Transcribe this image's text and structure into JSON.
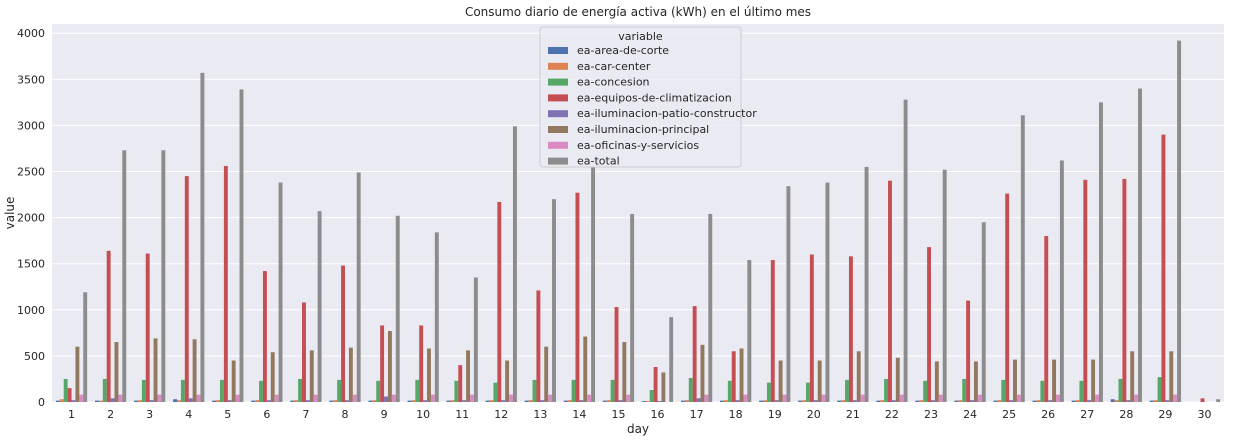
{
  "chart_data": {
    "type": "bar",
    "title": "Consumo diario de energía activa (kWh) en el último mes",
    "xlabel": "day",
    "ylabel": "value",
    "ylim": [
      0,
      4100
    ],
    "yticks": [
      0,
      500,
      1000,
      1500,
      2000,
      2500,
      3000,
      3500,
      4000
    ],
    "grid": true,
    "legend_title": "variable",
    "legend_position": "top-center",
    "categories": [
      "1",
      "2",
      "3",
      "4",
      "5",
      "6",
      "7",
      "8",
      "9",
      "10",
      "11",
      "12",
      "13",
      "14",
      "15",
      "16",
      "17",
      "18",
      "19",
      "20",
      "21",
      "22",
      "23",
      "24",
      "25",
      "26",
      "27",
      "28",
      "29",
      "30"
    ],
    "series": [
      {
        "name": "ea-area-de-corte",
        "color": "#4c72b0",
        "values": [
          15,
          15,
          15,
          30,
          15,
          15,
          15,
          15,
          15,
          15,
          15,
          15,
          15,
          15,
          15,
          10,
          15,
          15,
          15,
          15,
          15,
          15,
          15,
          15,
          15,
          15,
          15,
          30,
          15,
          0
        ]
      },
      {
        "name": "ea-car-center",
        "color": "#dd8452",
        "values": [
          30,
          15,
          20,
          20,
          20,
          20,
          20,
          20,
          20,
          20,
          20,
          20,
          20,
          20,
          20,
          10,
          20,
          20,
          20,
          20,
          20,
          20,
          20,
          20,
          20,
          20,
          20,
          20,
          20,
          0
        ]
      },
      {
        "name": "ea-concesion",
        "color": "#55a868",
        "values": [
          250,
          250,
          240,
          240,
          240,
          230,
          250,
          240,
          230,
          240,
          230,
          210,
          240,
          240,
          240,
          130,
          260,
          230,
          210,
          210,
          240,
          250,
          230,
          250,
          240,
          230,
          230,
          250,
          270,
          0
        ]
      },
      {
        "name": "ea-equipos-de-climatizacion",
        "color": "#c44e52",
        "values": [
          150,
          1640,
          1610,
          2450,
          2560,
          1420,
          1080,
          1480,
          830,
          830,
          400,
          2170,
          1210,
          2270,
          1030,
          380,
          1040,
          550,
          1540,
          1600,
          1580,
          2400,
          1680,
          1100,
          2260,
          1800,
          2410,
          2420,
          2900,
          40
        ]
      },
      {
        "name": "ea-iluminacion-patio-constructor",
        "color": "#8172b3",
        "values": [
          20,
          40,
          20,
          40,
          20,
          20,
          20,
          20,
          60,
          20,
          20,
          20,
          20,
          20,
          20,
          10,
          40,
          20,
          20,
          20,
          20,
          20,
          20,
          20,
          20,
          20,
          20,
          20,
          20,
          0
        ]
      },
      {
        "name": "ea-iluminacion-principal",
        "color": "#937860",
        "values": [
          600,
          650,
          690,
          680,
          450,
          540,
          560,
          590,
          770,
          580,
          560,
          450,
          600,
          710,
          650,
          320,
          620,
          580,
          450,
          450,
          550,
          480,
          440,
          440,
          460,
          460,
          460,
          550,
          550,
          0
        ]
      },
      {
        "name": "ea-oficinas-y-servicios",
        "color": "#da8bc3",
        "values": [
          80,
          80,
          80,
          80,
          80,
          80,
          80,
          80,
          80,
          80,
          80,
          80,
          80,
          80,
          80,
          0,
          80,
          80,
          80,
          80,
          80,
          80,
          80,
          80,
          80,
          80,
          80,
          80,
          80,
          0
        ]
      },
      {
        "name": "ea-total",
        "color": "#8c8c8c",
        "values": [
          1190,
          2730,
          2730,
          3570,
          3390,
          2380,
          2070,
          2490,
          2020,
          1840,
          1350,
          2990,
          2200,
          2550,
          2040,
          920,
          2040,
          1540,
          2340,
          2380,
          2550,
          3280,
          2520,
          1950,
          3110,
          2620,
          3250,
          3400,
          3920,
          30
        ]
      }
    ]
  }
}
